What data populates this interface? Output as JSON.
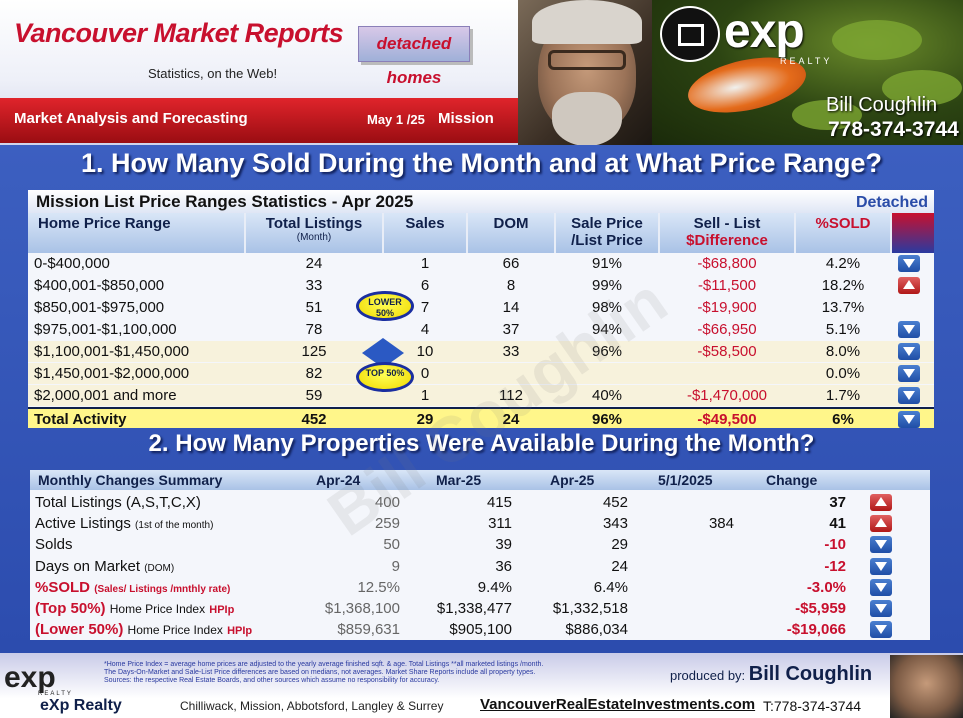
{
  "header": {
    "site_title": "Vancouver Market Reports",
    "site_subtitle": "Statistics, on the Web!",
    "badge_label": "detached homes",
    "section": "Market Analysis and Forecasting",
    "date": "May 1 /25",
    "location": "Mission",
    "brokerage_logo": "exp",
    "brokerage_realty": "REALTY",
    "agent_name": "Bill Coughlin",
    "agent_phone": "778-374-3744"
  },
  "q1_heading": "1. How Many Sold During the Month and at What Price Range?",
  "q2_heading": "2. How Many Properties Were Available During the Month?",
  "table1": {
    "title": "Mission List Price Ranges Statistics - Apr  2025",
    "type_label": "Detached",
    "headers": {
      "range": "Home Price Range",
      "listings": "Total  Listings",
      "listings_sub": "(Month)",
      "sales": "Sales",
      "dom": "DOM",
      "ratio_l1": "Sale Price",
      "ratio_l2": "/List Price",
      "diff_l1": "Sell - List",
      "diff_l2": "$Difference",
      "sold": "%SOLD"
    },
    "lower_badge": "LOWER 50%",
    "top_badge": "TOP 50%",
    "rows": [
      {
        "range": "0-$400,000",
        "listings": "24",
        "sales": "1",
        "dom": "66",
        "ratio": "91%",
        "diff": "-$68,800",
        "sold": "4.2%",
        "trend": "down"
      },
      {
        "range": "$400,001-$850,000",
        "listings": "33",
        "sales": "6",
        "dom": "8",
        "ratio": "99%",
        "diff": "-$11,500",
        "sold": "18.2%",
        "trend": "up"
      },
      {
        "range": "$850,001-$975,000",
        "listings": "51",
        "sales": "7",
        "dom": "14",
        "ratio": "98%",
        "diff": "-$19,900",
        "sold": "13.7%",
        "trend": ""
      },
      {
        "range": "$975,001-$1,100,000",
        "listings": "78",
        "sales": "4",
        "dom": "37",
        "ratio": "94%",
        "diff": "-$66,950",
        "sold": "5.1%",
        "trend": "down"
      },
      {
        "range": "$1,100,001-$1,450,000",
        "listings": "125",
        "sales": "10",
        "dom": "33",
        "ratio": "96%",
        "diff": "-$58,500",
        "sold": "8.0%",
        "trend": "down"
      },
      {
        "range": "$1,450,001-$2,000,000",
        "listings": "82",
        "sales": "0",
        "dom": "",
        "ratio": "",
        "diff": "",
        "sold": "0.0%",
        "trend": "down"
      },
      {
        "range": "$2,000,001 and more",
        "listings": "59",
        "sales": "1",
        "dom": "112",
        "ratio": "40%",
        "diff": "-$1,470,000",
        "sold": "1.7%",
        "trend": "down"
      }
    ],
    "total": {
      "range": "Total Activity",
      "listings": "452",
      "sales": "29",
      "dom": "24",
      "ratio": "96%",
      "diff": "-$49,500",
      "sold": "6%",
      "trend": "down"
    }
  },
  "table2": {
    "headers": {
      "summary": "Monthly Changes Summary",
      "c1": "Apr-24",
      "c2": "Mar-25",
      "c3": "Apr-25",
      "c4": "5/1/2025",
      "change": "Change"
    },
    "rows": [
      {
        "label": "Total Listings  (A,S,T,C,X)",
        "sub": "",
        "v1": "400",
        "v2": "415",
        "v3": "452",
        "v4": "",
        "change": "37",
        "trend": "up"
      },
      {
        "label": "Active Listings",
        "sub": "(1st of the month)",
        "v1": "259",
        "v2": "311",
        "v3": "343",
        "v4": "384",
        "change": "41",
        "trend": "up"
      },
      {
        "label": "Solds",
        "sub": "",
        "v1": "50",
        "v2": "39",
        "v3": "29",
        "v4": "",
        "change": "-10",
        "trend": "down"
      },
      {
        "label": "Days on Market",
        "sub": "(DOM)",
        "v1": "9",
        "v2": "36",
        "v3": "24",
        "v4": "",
        "change": "-12",
        "trend": "down"
      },
      {
        "label": "%SOLD",
        "sub": "(Sales/ Listings /mnthly rate)",
        "v1": "12.5%",
        "v2": "9.4%",
        "v3": "6.4%",
        "v4": "",
        "change": "-3.0%",
        "trend": "down"
      },
      {
        "label": "(Top 50%)",
        "sub": "Home Price Index",
        "hpi": "HPIp",
        "v1": "$1,368,100",
        "v2": "$1,338,477",
        "v3": "$1,332,518",
        "v4": "",
        "change": "-$5,959",
        "trend": "down"
      },
      {
        "label": "(Lower 50%)",
        "sub": "Home Price Index",
        "hpi": "HPIp",
        "v1": "$859,631",
        "v2": "$905,100",
        "v3": "$886,034",
        "v4": "",
        "change": "-$19,066",
        "trend": "down"
      }
    ]
  },
  "footer": {
    "note1": "*Home Price Index = average home prices are adjusted to the yearly average finished sqft. & age.  Total Listings **all marketed listings /month.",
    "note2": "The Days-On-Market and Sale-List Price differences are based on medians, not averages.  Market Share Reports include all property types.",
    "note3": "Sources:  the respective Real Estate Boards, and other sources which assume no responsibility for accuracy.",
    "produced_by": "produced by:",
    "producer": "Bill Coughlin",
    "brokerage": "eXp Realty",
    "cities": "Chilliwack, Mission, Abbotsford, Langley & Surrey",
    "website": "VancouverRealEstateInvestments.com",
    "phone": "T:778-374-3744",
    "logo": "exp",
    "logo_realty": "REALTY"
  },
  "colors": {
    "brand_red": "#c8102e",
    "panel_blue": "#2c4cae",
    "total_yellow": "#fff68a"
  }
}
